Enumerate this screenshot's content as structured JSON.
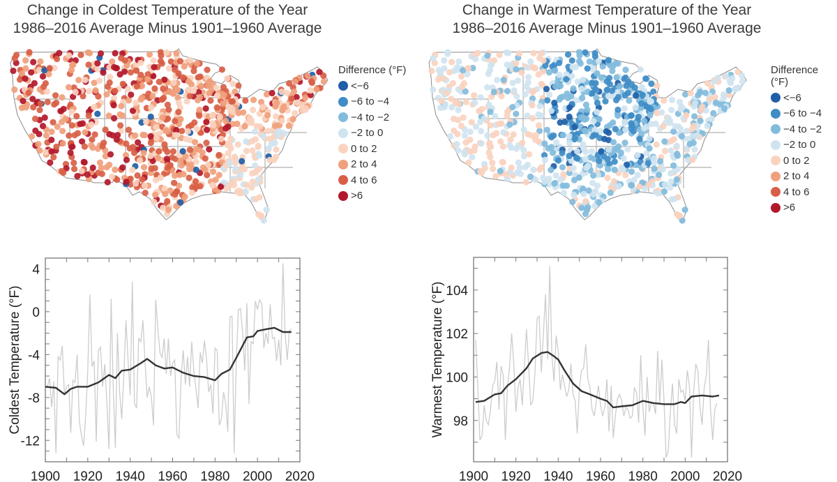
{
  "maps": [
    {
      "title_line1": "Change in Coldest Temperature of the Year",
      "title_line2": "1986–2016 Average Minus 1901–1960 Average"
    },
    {
      "title_line1": "Change in Warmest Temperature of the Year",
      "title_line2": "1986–2016 Average Minus 1901–1960 Average"
    }
  ],
  "legend": {
    "title": "Difference (°F)",
    "items": [
      {
        "label": "<−6",
        "color": "#1f5fa8"
      },
      {
        "label": "−6 to −4",
        "color": "#3f8cc6"
      },
      {
        "label": "−4 to −2",
        "color": "#82bcdc"
      },
      {
        "label": "−2 to 0",
        "color": "#cfe4f0"
      },
      {
        "label": "0 to 2",
        "color": "#fad3bf"
      },
      {
        "label": "2 to 4",
        "color": "#f0a07c"
      },
      {
        "label": "4 to 6",
        "color": "#d85f47"
      },
      {
        "label": ">6",
        "color": "#b2182b"
      }
    ]
  },
  "chart_data": [
    {
      "type": "line",
      "title": "",
      "xlabel": "",
      "ylabel": "Coldest Temperature (°F)",
      "xlim": [
        1900,
        2020
      ],
      "ylim": [
        -14,
        5
      ],
      "xticks": [
        "1900",
        "1920",
        "1940",
        "1960",
        "1980",
        "2000",
        "2020"
      ],
      "yticks": [
        "4",
        "0",
        "-4",
        "-8",
        "-12"
      ],
      "grid": false,
      "series": [
        {
          "name": "annual",
          "color": "#cccccc",
          "start_year": 1901,
          "values": [
            -7,
            -6.2,
            -8.9,
            -6.5,
            -13.2,
            -4.2,
            -4.5,
            -3.2,
            -7.8,
            -7.0,
            -6.8,
            -11.3,
            -6.4,
            -6.6,
            -4.0,
            -10.2,
            -11.5,
            -12.5,
            -9.8,
            -5.5,
            1.6,
            -5.1,
            -4.6,
            -12.1,
            -3.6,
            -3.3,
            -7.0,
            -4.9,
            -8.5,
            -12.8,
            1.2,
            -7.0,
            -12.7,
            -2.0,
            -7.5,
            -10.0,
            -6.0,
            -0.8,
            -4.5,
            -7.8,
            2.8,
            -8.6,
            -9.0,
            -2.5,
            -2.8,
            -0.8,
            -4.8,
            -8.0,
            -7.0,
            -8.0,
            -10.6,
            1.1,
            -1.5,
            -3.8,
            -4.3,
            -2.5,
            -5.8,
            -2.5,
            -6.0,
            -4.8,
            -4.5,
            -11.5,
            -11.8,
            -6.0,
            -3.6,
            -6.8,
            -4.2,
            -7.0,
            -2.8,
            -5.5,
            -7.2,
            -9.0,
            -3.8,
            -4.8,
            -2.7,
            -4.5,
            -7.5,
            -6.8,
            -9.5,
            -3.4,
            -3.6,
            -10.6,
            -10.0,
            -7.5,
            -8.5,
            -11.2,
            -0.5,
            -0.4,
            -13.2,
            -4.5,
            0.2,
            0.3,
            -2.0,
            -5.5,
            0.8,
            -8.6,
            -2.8,
            -3.0,
            1.0,
            0.2,
            1.1,
            0.8,
            -3.4,
            -2.0,
            -3.0,
            0.7,
            -2.5,
            -2.4,
            -4.6,
            -2.6,
            -5.0,
            4.5,
            -2.0,
            -4.5,
            -1.8,
            -1.6
          ]
        },
        {
          "name": "smoothed",
          "color": "#333333",
          "x": [
            1900,
            1905,
            1909,
            1912,
            1915,
            1920,
            1925,
            1930,
            1933,
            1936,
            1940,
            1945,
            1948,
            1952,
            1956,
            1960,
            1965,
            1970,
            1975,
            1980,
            1983,
            1987,
            1990,
            1995,
            1998,
            2000,
            2005,
            2008,
            2012,
            2016
          ],
          "values": [
            -7.0,
            -7.1,
            -7.7,
            -7.2,
            -7.0,
            -7.0,
            -6.6,
            -5.9,
            -6.2,
            -5.5,
            -5.4,
            -4.8,
            -4.4,
            -5.0,
            -5.3,
            -5.2,
            -5.7,
            -6.0,
            -6.1,
            -6.4,
            -5.8,
            -5.4,
            -4.3,
            -2.4,
            -2.3,
            -1.8,
            -1.6,
            -1.5,
            -1.9,
            -1.9
          ]
        }
      ]
    },
    {
      "type": "line",
      "title": "",
      "xlabel": "",
      "ylabel": "Warmest Temperature (°F)",
      "xlim": [
        1900,
        2020
      ],
      "ylim": [
        96.1,
        105.5
      ],
      "xticks": [
        "1900",
        "1920",
        "1940",
        "1960",
        "1980",
        "2000",
        "2020"
      ],
      "yticks": [
        "98",
        "100",
        "102",
        "104"
      ],
      "grid": false,
      "series": [
        {
          "name": "annual",
          "color": "#cccccc",
          "start_year": 1901,
          "values": [
            101.7,
            99.5,
            97.1,
            97.3,
            98.7,
            98.0,
            97.8,
            98.5,
            99.6,
            99.8,
            100.7,
            98.5,
            100.5,
            100.1,
            97.1,
            99.5,
            100.5,
            102.0,
            100.6,
            98.4,
            99.5,
            99.9,
            98.7,
            100.5,
            102.2,
            100.5,
            98.7,
            98.9,
            100.2,
            102.7,
            102.8,
            100.2,
            102.0,
            103.8,
            100.8,
            105.1,
            101.0,
            99.8,
            101.9,
            101.2,
            99.4,
            100.1,
            99.6,
            99.1,
            99.4,
            100.6,
            99.2,
            98.9,
            97.4,
            99.5,
            100.3,
            100.4,
            101.5,
            99.9,
            99.5,
            98.5,
            98.2,
            98.9,
            99.6,
            98.7,
            98.2,
            98.6,
            99.9,
            97.5,
            99.6,
            97.2,
            98.2,
            99.0,
            99.2,
            98.9,
            98.2,
            98.6,
            98.5,
            98.1,
            98.2,
            99.5,
            99.3,
            97.9,
            101.0,
            98.6,
            97.3,
            100.0,
            98.4,
            98.8,
            98.8,
            98.3,
            101.2,
            98.8,
            100.8,
            98.9,
            96.3,
            96.6,
            98.4,
            99.7,
            97.8,
            97.4,
            99.9,
            99.3,
            99.4,
            98.9,
            100.3,
            99.6,
            96.3,
            99.3,
            100.6,
            100.3,
            98.6,
            97.8,
            99.5,
            100.1,
            101.7,
            98.5,
            97.1,
            98.5,
            98.8
          ]
        },
        {
          "name": "smoothed",
          "color": "#333333",
          "x": [
            1901,
            1905,
            1910,
            1913,
            1916,
            1920,
            1925,
            1928,
            1932,
            1935,
            1938,
            1940,
            1943,
            1947,
            1951,
            1955,
            1960,
            1963,
            1966,
            1970,
            1975,
            1980,
            1985,
            1990,
            1995,
            1998,
            2000,
            2003,
            2008,
            2013,
            2016
          ],
          "values": [
            98.85,
            98.9,
            99.2,
            99.25,
            99.6,
            99.9,
            100.4,
            100.85,
            101.1,
            101.15,
            100.95,
            100.8,
            100.3,
            99.7,
            99.35,
            99.2,
            99.0,
            98.9,
            98.6,
            98.65,
            98.7,
            98.9,
            98.8,
            98.75,
            98.75,
            98.85,
            98.8,
            99.1,
            99.15,
            99.1,
            99.15
          ]
        }
      ]
    }
  ]
}
